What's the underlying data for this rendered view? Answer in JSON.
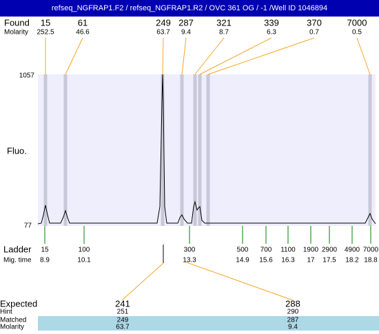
{
  "header": {
    "title": "refseq_NGFRAP1.F2 / refseq_NGFRAP1.R2 / OVC 361 OG / -1 /Well ID 1046894"
  },
  "found": {
    "label": "Found",
    "molarity_label": "Molarity",
    "sizes": [
      15,
      61,
      249,
      287,
      321,
      339,
      370,
      7000
    ],
    "molarity": [
      252.5,
      46.6,
      63.7,
      9.4,
      8.7,
      6.3,
      0.7,
      0.5
    ]
  },
  "plot": {
    "y_label": "Fluo.",
    "y_top": 1057,
    "y_bottom": 77
  },
  "ladder": {
    "label": "Ladder",
    "mig_label": "Mig. time",
    "sizes": [
      15,
      100,
      300,
      500,
      700,
      1100,
      1900,
      2900,
      4900,
      7000
    ],
    "mig_times": [
      8.9,
      10.1,
      13.3,
      14.9,
      15.6,
      16.3,
      17,
      17.5,
      18.2,
      18.8
    ]
  },
  "expected": {
    "labels": [
      "Expected",
      "Hint",
      "Matched",
      "Molarity"
    ],
    "columns": [
      [
        241,
        251,
        249,
        63.7
      ],
      [
        288,
        290,
        287,
        9.4
      ]
    ]
  }
}
